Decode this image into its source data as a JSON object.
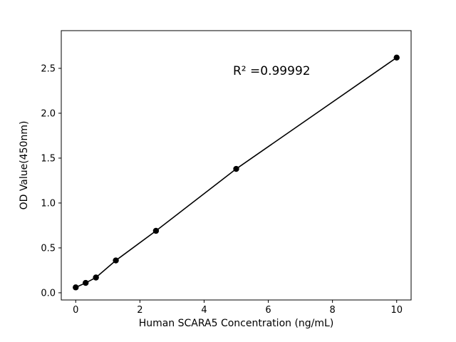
{
  "chart_data": {
    "type": "scatter",
    "title": "",
    "xlabel": "Human SCARA5 Concentration (ng/mL)",
    "ylabel": "OD Value(450nm)",
    "annotation": "R² =0.99992",
    "x": [
      0,
      0.31,
      0.63,
      1.25,
      2.5,
      5,
      10
    ],
    "y": [
      0.06,
      0.11,
      0.17,
      0.36,
      0.69,
      1.38,
      2.62
    ],
    "xlim": [
      -0.45,
      10.45
    ],
    "ylim": [
      -0.08,
      2.92
    ],
    "x_ticks": [
      "0",
      "2",
      "4",
      "6",
      "8",
      "10"
    ],
    "x_tick_values": [
      0,
      2,
      4,
      6,
      8,
      10
    ],
    "y_ticks": [
      "0.0",
      "0.5",
      "1.0",
      "1.5",
      "2.0",
      "2.5"
    ],
    "y_tick_values": [
      0,
      0.5,
      1.0,
      1.5,
      2.0,
      2.5
    ],
    "line_color": "#000000",
    "marker_color": "#000000",
    "axis_color": "#000000",
    "background": "#ffffff",
    "grid": false,
    "legend": "none"
  }
}
